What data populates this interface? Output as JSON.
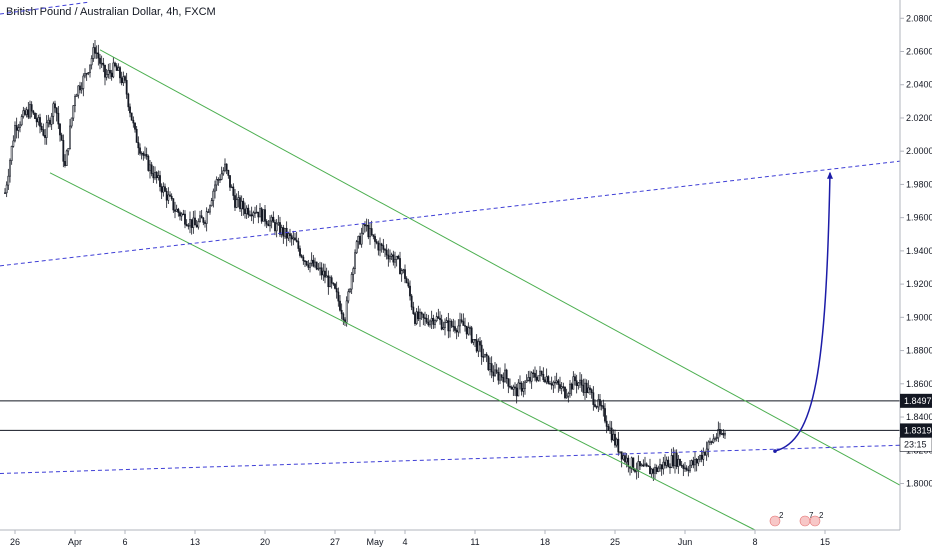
{
  "header": {
    "title": "British Pound / Australian Dollar, 4h, FXCM"
  },
  "chart_data": {
    "type": "candlestick",
    "title": "British Pound / Australian Dollar, 4h, FXCM",
    "y_ticks": [
      "2.08000",
      "2.06000",
      "2.04000",
      "2.02000",
      "2.00000",
      "1.98000",
      "1.96000",
      "1.94000",
      "1.92000",
      "1.90000",
      "1.88000",
      "1.86000",
      "1.84000",
      "1.82000",
      "1.80000"
    ],
    "y_tick_values": [
      2.08,
      2.06,
      2.04,
      2.02,
      2.0,
      1.98,
      1.96,
      1.94,
      1.92,
      1.9,
      1.88,
      1.86,
      1.84,
      1.82,
      1.8
    ],
    "ylim": [
      1.772,
      2.091
    ],
    "x_ticks": [
      {
        "label": "26",
        "t": -5
      },
      {
        "label": "Apr",
        "t": 1
      },
      {
        "label": "6",
        "t": 6
      },
      {
        "label": "13",
        "t": 13
      },
      {
        "label": "20",
        "t": 20
      },
      {
        "label": "27",
        "t": 27
      },
      {
        "label": "May",
        "t": 31
      },
      {
        "label": "4",
        "t": 34
      },
      {
        "label": "11",
        "t": 41
      },
      {
        "label": "18",
        "t": 48
      },
      {
        "label": "25",
        "t": 55
      },
      {
        "label": "Jun",
        "t": 62
      },
      {
        "label": "8",
        "t": 69
      },
      {
        "label": "15",
        "t": 76
      }
    ],
    "xlim": [
      -6.5,
      83.5
    ],
    "price_levels": [
      {
        "label": "1.84975",
        "value": 1.84975
      },
      {
        "label": "1.83194",
        "value": 1.83194
      }
    ],
    "countdown": "23:15",
    "channel_upper": [
      [
        3.5,
        2.061
      ],
      [
        83.5,
        1.799
      ]
    ],
    "channel_lower": [
      [
        -1.5,
        1.987
      ],
      [
        69,
        1.772
      ]
    ],
    "dashed_lines": [
      {
        "from": [
          -6.5,
          1.931
        ],
        "to": [
          83.5,
          1.994
        ]
      },
      {
        "from": [
          -6.5,
          1.806
        ],
        "to": [
          83.5,
          1.823
        ]
      }
    ],
    "projection_arrow": {
      "from": [
        71,
        1.8195
      ],
      "to": [
        76.5,
        1.987
      ]
    },
    "colors": {
      "up": "#131722",
      "down": "#131722",
      "channel": "#4caf50",
      "dashed": "#3f3fd6",
      "arrow": "#1c1ca8",
      "level": "#131722"
    },
    "event_badges": [
      {
        "count": "2",
        "t": 71
      },
      {
        "count": "7",
        "t": 74
      },
      {
        "count": "2",
        "t": 75
      }
    ],
    "anchors": [
      [
        -6,
        1.975
      ],
      [
        -5,
        2.015
      ],
      [
        -3.5,
        2.025
      ],
      [
        -2,
        2.01
      ],
      [
        -1,
        2.03
      ],
      [
        0,
        1.99
      ],
      [
        1,
        2.035
      ],
      [
        2,
        2.045
      ],
      [
        3,
        2.062
      ],
      [
        4,
        2.045
      ],
      [
        5,
        2.05
      ],
      [
        6,
        2.04
      ],
      [
        7,
        2.01
      ],
      [
        8,
        1.995
      ],
      [
        9,
        1.985
      ],
      [
        10,
        1.975
      ],
      [
        11,
        1.965
      ],
      [
        12,
        1.96
      ],
      [
        13,
        1.955
      ],
      [
        14,
        1.96
      ],
      [
        15,
        1.98
      ],
      [
        16,
        1.99
      ],
      [
        17,
        1.97
      ],
      [
        18,
        1.965
      ],
      [
        19,
        1.965
      ],
      [
        20,
        1.96
      ],
      [
        21,
        1.955
      ],
      [
        22,
        1.95
      ],
      [
        23,
        1.945
      ],
      [
        24,
        1.935
      ],
      [
        25,
        1.93
      ],
      [
        26,
        1.925
      ],
      [
        27,
        1.915
      ],
      [
        28,
        1.9
      ],
      [
        29,
        1.94
      ],
      [
        30,
        1.955
      ],
      [
        31,
        1.945
      ],
      [
        32,
        1.94
      ],
      [
        33,
        1.935
      ],
      [
        34,
        1.925
      ],
      [
        35,
        1.9
      ],
      [
        36,
        1.898
      ],
      [
        37,
        1.9
      ],
      [
        38,
        1.895
      ],
      [
        39,
        1.895
      ],
      [
        40,
        1.895
      ],
      [
        41,
        1.885
      ],
      [
        42,
        1.875
      ],
      [
        43,
        1.865
      ],
      [
        44,
        1.865
      ],
      [
        45,
        1.855
      ],
      [
        46,
        1.86
      ],
      [
        47,
        1.865
      ],
      [
        48,
        1.865
      ],
      [
        49,
        1.86
      ],
      [
        50,
        1.855
      ],
      [
        51,
        1.862
      ],
      [
        52,
        1.858
      ],
      [
        53,
        1.85
      ],
      [
        54,
        1.84
      ],
      [
        55,
        1.825
      ],
      [
        56,
        1.815
      ],
      [
        57,
        1.81
      ],
      [
        58,
        1.808
      ],
      [
        59,
        1.808
      ],
      [
        60,
        1.812
      ],
      [
        61,
        1.815
      ],
      [
        62,
        1.81
      ],
      [
        63,
        1.812
      ],
      [
        64,
        1.82
      ],
      [
        65,
        1.828
      ],
      [
        66,
        1.83
      ]
    ]
  }
}
